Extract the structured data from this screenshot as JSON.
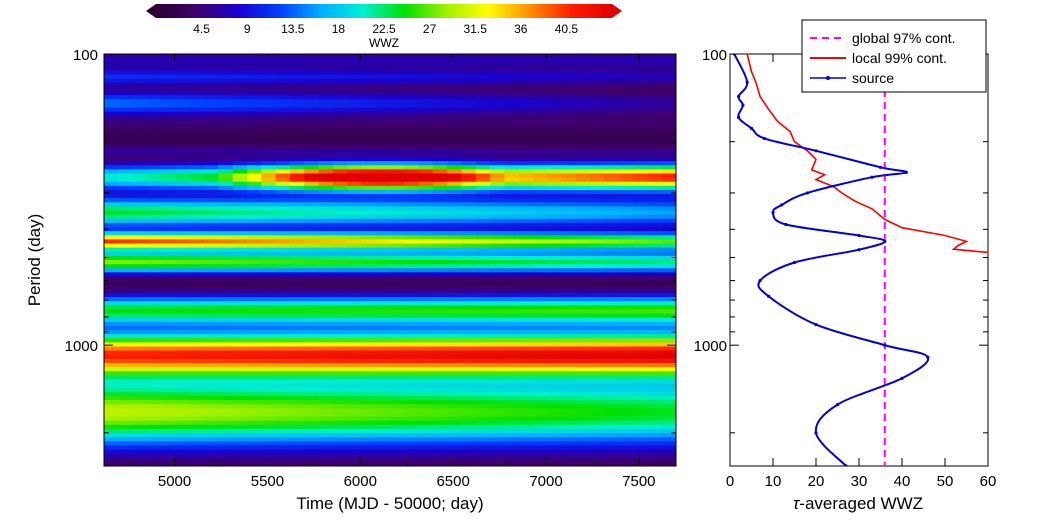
{
  "chart_data": [
    {
      "type": "heatmap",
      "title": "",
      "xlabel": "Time (MJD - 50000; day)",
      "ylabel": "Period (day)",
      "xlim": [
        4620,
        7700
      ],
      "ylim": [
        100,
        2600
      ],
      "yscale": "log",
      "x_ticks": [
        "5000",
        "5500",
        "6000",
        "6500",
        "7000",
        "7500"
      ],
      "x_tick_values": [
        5000,
        5500,
        6000,
        6500,
        7000,
        7500
      ],
      "y_ticks": [
        "100",
        "1000"
      ],
      "y_tick_values": [
        100,
        1000
      ],
      "colorbar": {
        "label": "WWZ",
        "ticks": [
          "4.5",
          "9",
          "13.5",
          "18",
          "22.5",
          "27",
          "31.5",
          "36",
          "40.5"
        ],
        "tick_values": [
          4.5,
          9,
          13.5,
          18,
          22.5,
          27,
          31.5,
          36,
          40.5
        ],
        "range": [
          0,
          45
        ],
        "colormap": [
          "#2a0033",
          "#3f006a",
          "#1a00d0",
          "#0040ff",
          "#00b0ff",
          "#00f0d0",
          "#00e000",
          "#a0f000",
          "#ffff00",
          "#ff9000",
          "#ff2000",
          "#e00000"
        ]
      },
      "bands": [
        {
          "period": 105,
          "width": 0.02,
          "base": 4,
          "start": 5,
          "end": 5
        },
        {
          "period": 120,
          "width": 0.02,
          "base": 8,
          "start": 9,
          "end": 5
        },
        {
          "period": 148,
          "width": 0.03,
          "base": 7,
          "start": 12,
          "end": 4
        },
        {
          "period": 175,
          "width": 0.02,
          "base": 2,
          "start": 2,
          "end": 2
        },
        {
          "period": 215,
          "width": 0.015,
          "base": 3,
          "start": 4,
          "end": 3
        },
        {
          "period": 265,
          "width": 0.03,
          "base": 4,
          "start": 18,
          "end": 40,
          "peak_at": 6100,
          "peak": 42
        },
        {
          "period": 350,
          "width": 0.035,
          "base": 12,
          "start": 22,
          "end": 14
        },
        {
          "period": 440,
          "width": 0.02,
          "base": 30,
          "start": 38,
          "end": 24
        },
        {
          "period": 520,
          "width": 0.025,
          "base": 16,
          "start": 26,
          "end": 20
        },
        {
          "period": 760,
          "width": 0.035,
          "base": 18,
          "start": 22,
          "end": 24
        },
        {
          "period": 1080,
          "width": 0.05,
          "base": 40,
          "start": 38,
          "end": 42
        },
        {
          "period": 1700,
          "width": 0.08,
          "base": 24,
          "start": 28,
          "end": 22
        }
      ]
    },
    {
      "type": "line",
      "title": "",
      "xlabel": "τ-averaged WWZ",
      "ylabel": "",
      "xlim": [
        0,
        60
      ],
      "ylim": [
        100,
        2600
      ],
      "yscale": "log",
      "x_ticks": [
        "0",
        "10",
        "20",
        "30",
        "40",
        "50",
        "60"
      ],
      "x_tick_values": [
        0,
        10,
        20,
        30,
        40,
        50,
        60
      ],
      "y_ticks": [
        "100",
        "1000"
      ],
      "y_tick_values": [
        100,
        1000
      ],
      "legend": "top-right",
      "series": [
        {
          "name": "global 97% cont.",
          "color": "#ff00ff",
          "style": "dashed",
          "points": [
            [
              36,
              100
            ],
            [
              36,
              2600
            ]
          ]
        },
        {
          "name": "local 99% cont.",
          "color": "#ff0000",
          "style": "solid",
          "points": [
            [
              4,
              100
            ],
            [
              5,
              115
            ],
            [
              6,
              125
            ],
            [
              7,
              140
            ],
            [
              9,
              155
            ],
            [
              11,
              170
            ],
            [
              14,
              185
            ],
            [
              15,
              200
            ],
            [
              18,
              215
            ],
            [
              20,
              230
            ],
            [
              19,
              250
            ],
            [
              22,
              260
            ],
            [
              20,
              270
            ],
            [
              24,
              285
            ],
            [
              26,
              300
            ],
            [
              29,
              320
            ],
            [
              33,
              340
            ],
            [
              36,
              370
            ],
            [
              40,
              395
            ],
            [
              50,
              420
            ],
            [
              55,
              440
            ],
            [
              53,
              455
            ],
            [
              52,
              468
            ],
            [
              60,
              480
            ]
          ]
        },
        {
          "name": "source",
          "color": "#0000e0",
          "style": "solid-dots",
          "points": [
            [
              1,
              100
            ],
            [
              4,
              125
            ],
            [
              2,
              140
            ],
            [
              3,
              150
            ],
            [
              2,
              165
            ],
            [
              5,
              180
            ],
            [
              8,
              195
            ],
            [
              20,
              215
            ],
            [
              35,
              245
            ],
            [
              41,
              255
            ],
            [
              33,
              265
            ],
            [
              18,
              300
            ],
            [
              12,
              330
            ],
            [
              10,
              350
            ],
            [
              13,
              385
            ],
            [
              30,
              420
            ],
            [
              36,
              440
            ],
            [
              30,
              470
            ],
            [
              15,
              520
            ],
            [
              7,
              600
            ],
            [
              9,
              680
            ],
            [
              20,
              850
            ],
            [
              36,
              1000
            ],
            [
              46,
              1100
            ],
            [
              40,
              1300
            ],
            [
              25,
              1600
            ],
            [
              20,
              2000
            ],
            [
              27,
              2600
            ]
          ]
        }
      ]
    }
  ]
}
